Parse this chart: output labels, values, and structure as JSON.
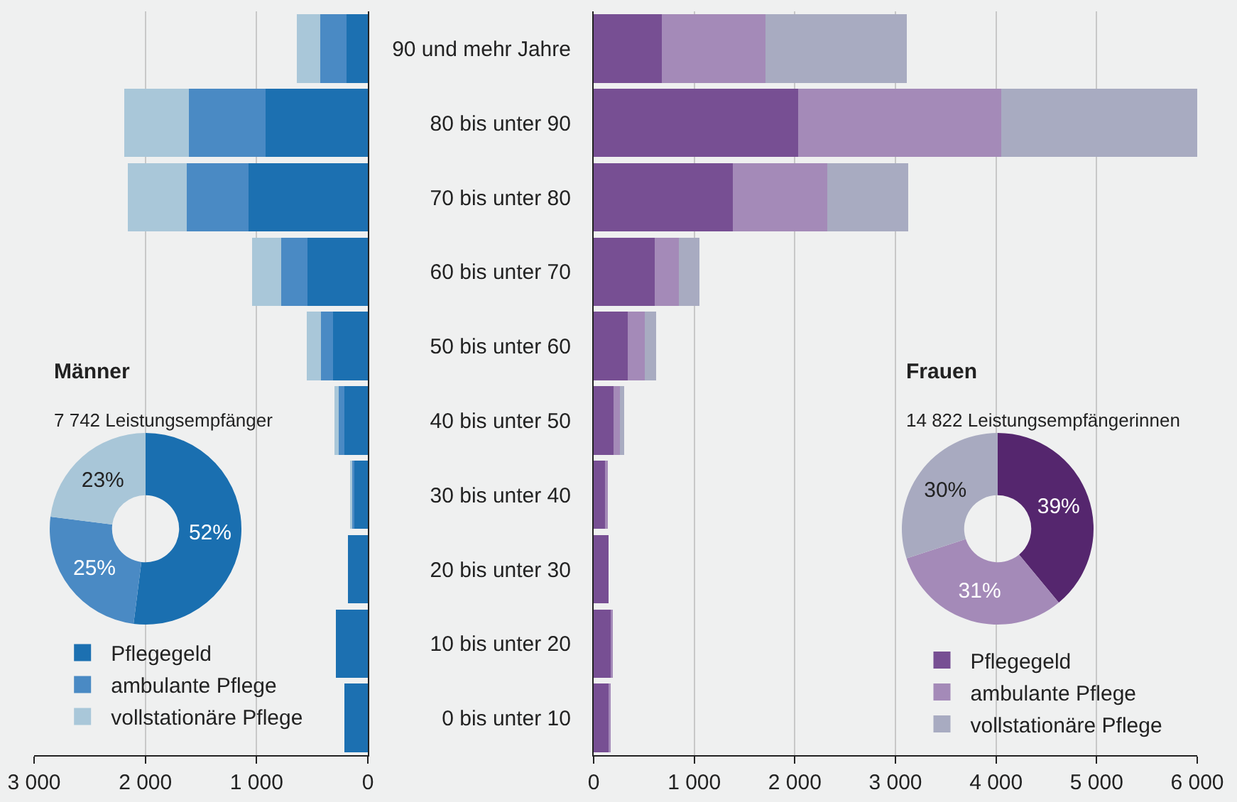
{
  "chart_data": [
    {
      "type": "bar",
      "orientation": "horizontal",
      "stacked": true,
      "categories": [
        null,
        null,
        null,
        null,
        null,
        null,
        null,
        null,
        null,
        null
      ],
      "series": [
        {
          "name": "Pflegegeld",
          "color": "#1c70b1",
          "values": [
            190,
            920,
            1070,
            540,
            310,
            210,
            120,
            180,
            290,
            210
          ]
        },
        {
          "name": "ambulante Pflege",
          "color": "#4a8ac4",
          "values": [
            240,
            690,
            560,
            240,
            110,
            50,
            20,
            0,
            0,
            0
          ]
        },
        {
          "name": "vollstationäre Pflege",
          "color": "#a9c7d9",
          "values": [
            210,
            580,
            530,
            260,
            130,
            40,
            20,
            0,
            0,
            0
          ]
        }
      ],
      "xlim": [
        3000,
        0
      ],
      "xticks": [
        {
          "value": 3000,
          "label": "3 000"
        },
        {
          "value": 2000,
          "label": "2 000"
        },
        {
          "value": 1000,
          "label": "1 000"
        },
        0
      ],
      "grid": "x",
      "legend": "bottom left"
    },
    {
      "type": "bar",
      "orientation": "horizontal",
      "stacked": true,
      "categories": [
        "90 und mehr Jahre",
        "80 bis unter 90",
        "70 bis unter 80",
        "60 bis unter 70",
        "50 bis unter 60",
        "40 bis unter 50",
        "30 bis unter 40",
        "20 bis unter 30",
        "10 bis unter 20",
        "0 bis unter 10"
      ],
      "series": [
        {
          "name": "Pflegegeld",
          "color": "#774f93",
          "values": [
            680,
            2030,
            1380,
            610,
            340,
            200,
            110,
            150,
            170,
            150
          ]
        },
        {
          "name": "ambulante Pflege",
          "color": "#a48ab8",
          "values": [
            1030,
            2020,
            940,
            240,
            170,
            60,
            30,
            0,
            20,
            20
          ]
        },
        {
          "name": "vollstationäre Pflege",
          "color": "#a8abc1",
          "values": [
            1400,
            1950,
            810,
            200,
            110,
            40,
            0,
            0,
            0,
            0
          ]
        }
      ],
      "xlim": [
        0,
        6000
      ],
      "xticks": [
        0,
        {
          "value": 1000,
          "label": "1 000"
        },
        {
          "value": 2000,
          "label": "2 000"
        },
        {
          "value": 3000,
          "label": "3 000"
        },
        {
          "value": 4000,
          "label": "4 000"
        },
        {
          "value": 5000,
          "label": "5 000"
        },
        {
          "value": 6000,
          "label": "6 000"
        }
      ],
      "grid": "x",
      "legend": "bottom right"
    },
    {
      "type": "donut",
      "title": "Männer",
      "subtitle": "7 742 Leistungsempfänger",
      "categories": [
        null,
        null,
        null
      ],
      "values": [
        52,
        25,
        23
      ],
      "value_labels": [
        "52%",
        "25%",
        "23%"
      ],
      "colors": [
        "#1a6fb0",
        "#4a8ac4",
        "#a8c6d8"
      ]
    },
    {
      "type": "donut",
      "title": "Frauen",
      "subtitle": "14 822 Leistungsempfängerinnen",
      "categories": [
        null,
        null,
        null
      ],
      "values": [
        39,
        31,
        30
      ],
      "value_labels": [
        "39%",
        "31%",
        "30%"
      ],
      "colors": [
        "#55266e",
        "#a48ab8",
        "#a8aac0"
      ]
    }
  ]
}
